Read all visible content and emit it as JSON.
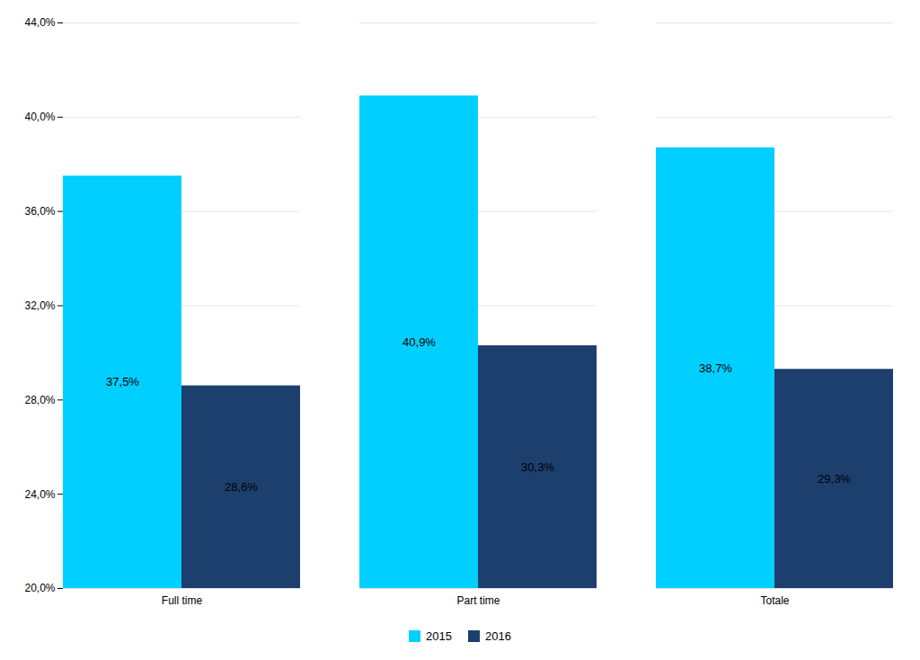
{
  "chart_data": {
    "type": "bar",
    "categories": [
      "Full time",
      "Part time",
      "Totale"
    ],
    "series": [
      {
        "name": "2015",
        "color": "#00CFFF",
        "values": [
          37.5,
          40.9,
          38.7
        ],
        "value_labels": [
          "37,5%",
          "40,9%",
          "38,7%"
        ]
      },
      {
        "name": "2016",
        "color": "#1C3F6E",
        "values": [
          28.6,
          30.3,
          29.3
        ],
        "value_labels": [
          "28,6%",
          "30,3%",
          "29,3%"
        ]
      }
    ],
    "ylim": [
      20.0,
      44.0
    ],
    "yticks": [
      {
        "value": 20.0,
        "label": "20,0%"
      },
      {
        "value": 24.0,
        "label": "24,0%"
      },
      {
        "value": 28.0,
        "label": "28,0%"
      },
      {
        "value": 32.0,
        "label": "32,0%"
      },
      {
        "value": 36.0,
        "label": "36,0%"
      },
      {
        "value": 40.0,
        "label": "40,0%"
      },
      {
        "value": 44.0,
        "label": "44,0%"
      }
    ],
    "grid": true,
    "data_labels": true,
    "legend": "bottom"
  }
}
